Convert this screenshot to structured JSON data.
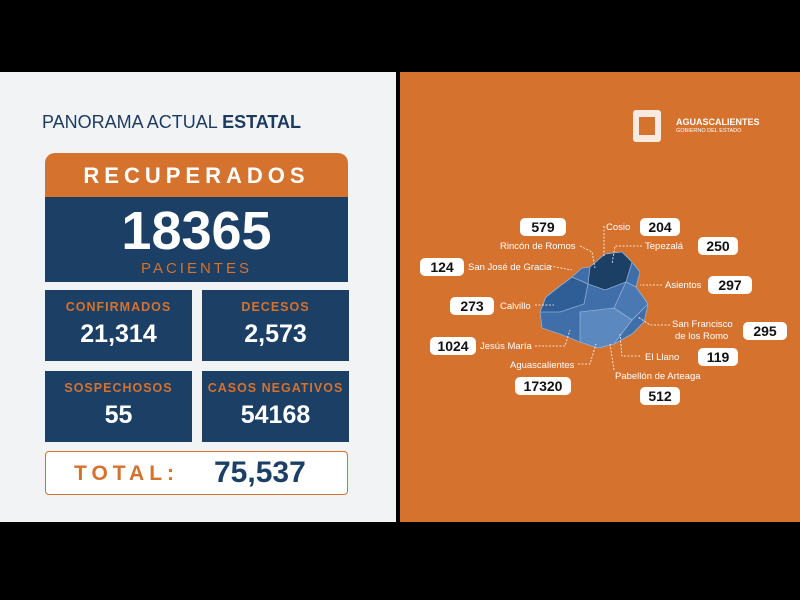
{
  "header": {
    "title_light": "PANORAMA ACTUAL",
    "title_bold": "ESTATAL"
  },
  "recuperados": {
    "label": "RECUPERADOS",
    "value": 18365,
    "unit": "PACIENTES"
  },
  "stats": [
    {
      "label": "CONFIRMADOS",
      "value": "21,314"
    },
    {
      "label": "DECESOS",
      "value": "2,573"
    },
    {
      "label": "SOSPECHOSOS",
      "value": 55
    },
    {
      "label": "CASOS NEGATIVOS",
      "value": 54168
    }
  ],
  "total": {
    "label": "TOTAL:",
    "value": "75,537"
  },
  "logo": {
    "name": "AGUASCALIENTES",
    "sub": "GOBIERNO DEL ESTADO"
  },
  "municipalities": [
    {
      "name": "Rincón de Romos",
      "value": 579
    },
    {
      "name": "Cosio",
      "value": 204
    },
    {
      "name": "Tepezalá",
      "value": 250
    },
    {
      "name": "San José de Gracia",
      "value": 124
    },
    {
      "name": "Asientos",
      "value": 297
    },
    {
      "name": "Calvillo",
      "value": 273
    },
    {
      "name": [
        "San Francisco",
        "de los Romo"
      ],
      "value": 295
    },
    {
      "name": "Jesús María",
      "value": 1024
    },
    {
      "name": "El Llano",
      "value": 119
    },
    {
      "name": "Aguascalientes",
      "value": 17320
    },
    {
      "name": "Pabellón de Arteaga",
      "value": 512
    }
  ]
}
